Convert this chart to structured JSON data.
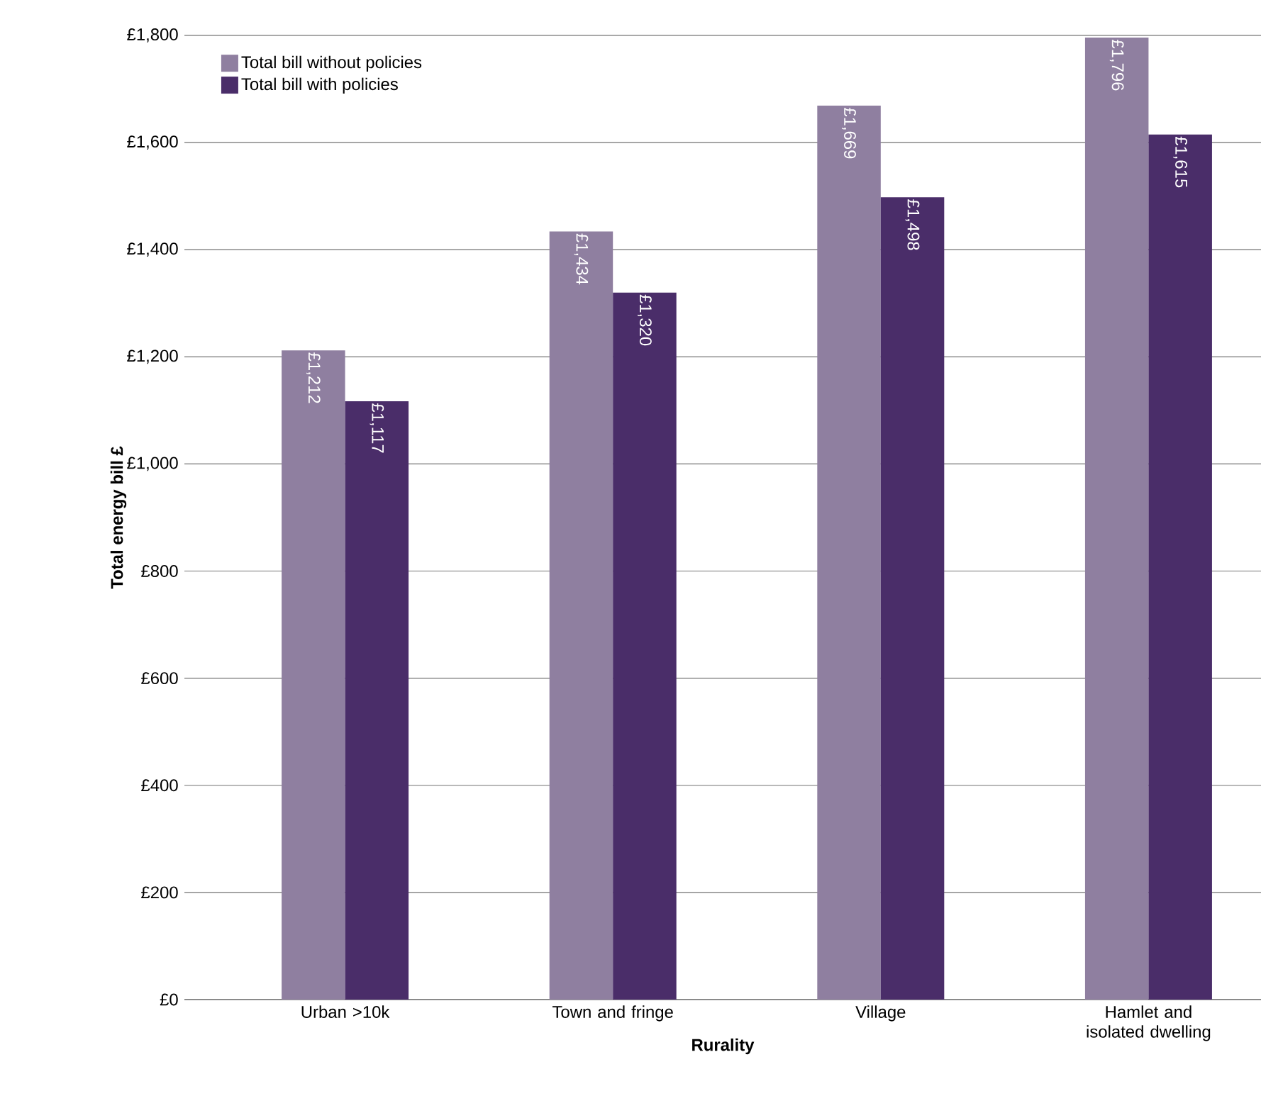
{
  "chart_data": {
    "type": "bar",
    "xlabel": "Rurality",
    "ylabel": "Total energy bill £",
    "categories": [
      "Urban >10k",
      "Town and fringe",
      "Village",
      "Hamlet and isolated dwelling"
    ],
    "series": [
      {
        "name": "Total bill without policies",
        "color": "#8f7fa0",
        "values": [
          1212,
          1434,
          1669,
          1796
        ],
        "value_labels": [
          "£1,212",
          "£1,434",
          "£1,669",
          "£1,796"
        ]
      },
      {
        "name": "Total bill with policies",
        "color": "#4a2d69",
        "values": [
          1117,
          1320,
          1498,
          1615
        ],
        "value_labels": [
          "£1,117",
          "£1,320",
          "£1,498",
          "£1,615"
        ]
      }
    ],
    "ylim": [
      0,
      1800
    ],
    "yticks": [
      {
        "value": 0,
        "label": "£0"
      },
      {
        "value": 200,
        "label": "£200"
      },
      {
        "value": 400,
        "label": "£400"
      },
      {
        "value": 600,
        "label": "£600"
      },
      {
        "value": 800,
        "label": "£800"
      },
      {
        "value": 1000,
        "label": "£1,000"
      },
      {
        "value": 1200,
        "label": "£1,200"
      },
      {
        "value": 1400,
        "label": "£1,400"
      },
      {
        "value": 1600,
        "label": "£1,600"
      },
      {
        "value": 1800,
        "label": "£1,800"
      }
    ],
    "grid": "y",
    "legend": "top left"
  }
}
